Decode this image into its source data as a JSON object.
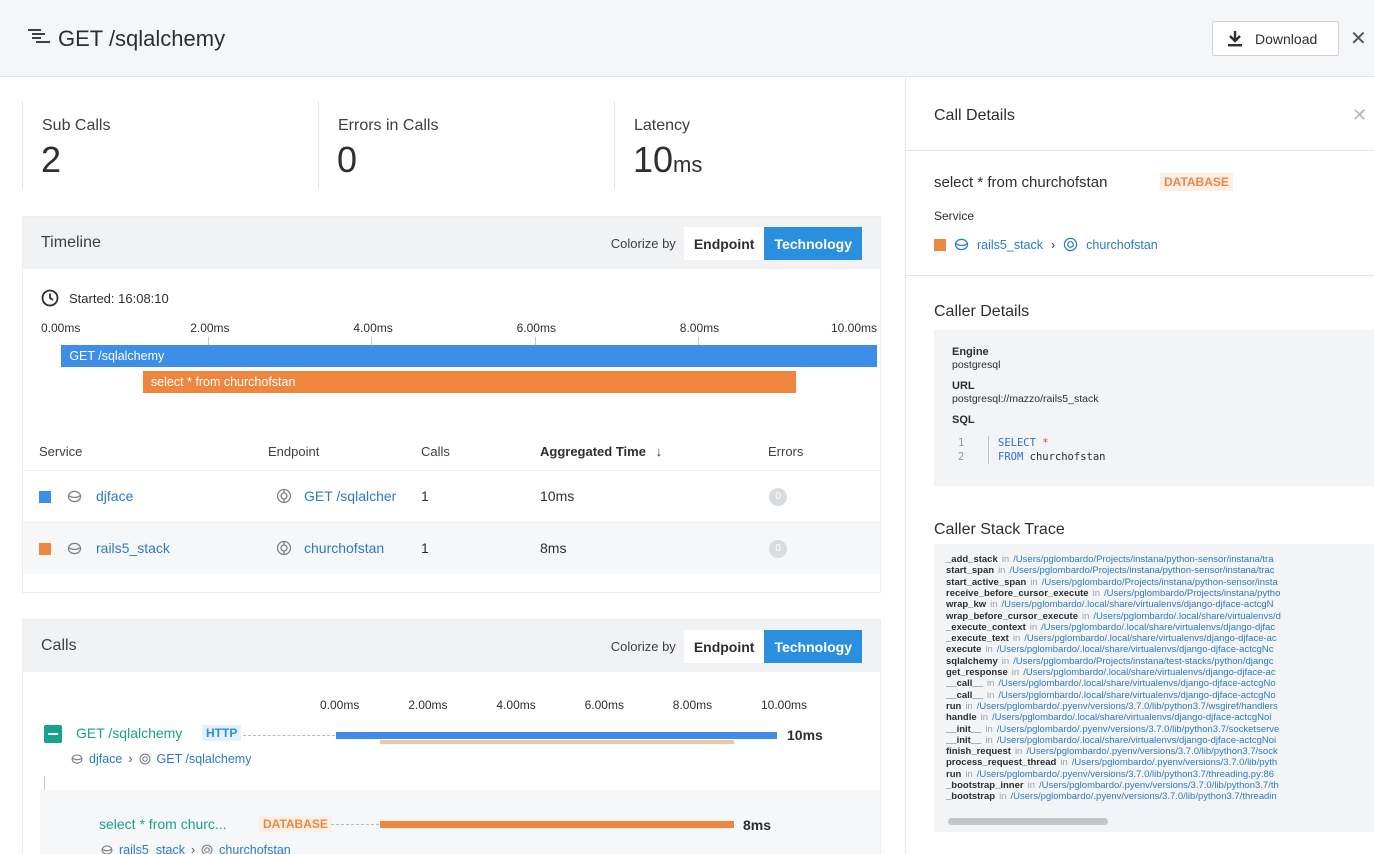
{
  "header": {
    "title": "GET /sqlalchemy",
    "download_label": "Download",
    "close_glyph": "✕"
  },
  "stats": {
    "sub_calls_label": "Sub Calls",
    "sub_calls_value": "2",
    "errors_label": "Errors in Calls",
    "errors_value": "0",
    "latency_label": "Latency",
    "latency_value": "10",
    "latency_unit": "ms"
  },
  "timeline": {
    "title": "Timeline",
    "colorize_label": "Colorize by",
    "endpoint_label": "Endpoint",
    "technology_label": "Technology",
    "started": "Started: 16:08:10",
    "ticks": [
      "0.00ms",
      "2.00ms",
      "4.00ms",
      "6.00ms",
      "8.00ms",
      "10.00ms"
    ],
    "bars": [
      {
        "label": "GET /sqlalchemy",
        "start_ms": 0.2,
        "end_ms": 10.2,
        "color": "#3d8ee8"
      },
      {
        "label": "select * from churchofstan",
        "start_ms": 1.2,
        "end_ms": 9.2,
        "color": "#ef8640"
      }
    ]
  },
  "services_table": {
    "headers": {
      "service": "Service",
      "endpoint": "Endpoint",
      "calls": "Calls",
      "agg_time": "Aggregated Time",
      "sort_arrow": "↓",
      "errors": "Errors"
    },
    "rows": [
      {
        "service": "djface",
        "endpoint": "GET /sqlalcher",
        "calls": "1",
        "time": "10ms",
        "errors": "0",
        "color": "#3d8ee8"
      },
      {
        "service": "rails5_stack",
        "endpoint": "churchofstan",
        "calls": "1",
        "time": "8ms",
        "errors": "0",
        "color": "#ef8640"
      }
    ]
  },
  "calls": {
    "title": "Calls",
    "colorize_label": "Colorize by",
    "endpoint_label": "Endpoint",
    "technology_label": "Technology",
    "ticks": [
      "0.00ms",
      "2.00ms",
      "4.00ms",
      "6.00ms",
      "8.00ms",
      "10.00ms"
    ],
    "items": [
      {
        "name": "GET /sqlalchemy",
        "badge": "HTTP",
        "service": "djface",
        "endpoint": "GET /sqlalchemy",
        "duration": "10ms"
      },
      {
        "name": "select * from churc...",
        "badge": "DATABASE",
        "service": "rails5_stack",
        "endpoint": "churchofstan",
        "duration": "8ms"
      }
    ]
  },
  "details": {
    "title": "Call Details",
    "close_glyph": "✕",
    "call_name": "select * from churchofstan",
    "call_badge": "DATABASE",
    "service_label": "Service",
    "service": "rails5_stack",
    "endpoint": "churchofstan",
    "caller_details_title": "Caller Details",
    "engine_label": "Engine",
    "engine": "postgresql",
    "url_label": "URL",
    "url": "postgresql://mazzo/rails5_stack",
    "sql_label": "SQL",
    "sql_line1_no": "1",
    "sql_line1_kw": "SELECT",
    "sql_line1_rest": "*",
    "sql_line2_no": "2",
    "sql_line2_kw": "FROM",
    "sql_line2_rest": "churchofstan",
    "stack_title": "Caller Stack Trace",
    "stack": [
      {
        "fn": "_add_stack",
        "path": "/Users/pglombardo/Projects/instana/python-sensor/instana/tra"
      },
      {
        "fn": "start_span",
        "path": "/Users/pglombardo/Projects/instana/python-sensor/instana/trac"
      },
      {
        "fn": "start_active_span",
        "path": "/Users/pglombardo/Projects/instana/python-sensor/insta"
      },
      {
        "fn": "receive_before_cursor_execute",
        "path": "/Users/pglombardo/Projects/instana/pytho"
      },
      {
        "fn": "wrap_kw",
        "path": "/Users/pglombardo/.local/share/virtualenvs/django-djface-actcgN"
      },
      {
        "fn": "wrap_before_cursor_execute",
        "path": "/Users/pglombardo/.local/share/virtualenvs/d"
      },
      {
        "fn": "_execute_context",
        "path": "/Users/pglombardo/.local/share/virtualenvs/django-djfac"
      },
      {
        "fn": "_execute_text",
        "path": "/Users/pglombardo/.local/share/virtualenvs/django-djface-ac"
      },
      {
        "fn": "execute",
        "path": "/Users/pglombardo/.local/share/virtualenvs/django-djface-actcgNc"
      },
      {
        "fn": "sqlalchemy",
        "path": "/Users/pglombardo/Projects/instana/test-stacks/python/djangc"
      },
      {
        "fn": "get_response",
        "path": "/Users/pglombardo/.local/share/virtualenvs/django-djface-ac"
      },
      {
        "fn": "__call__",
        "path": "/Users/pglombardo/.local/share/virtualenvs/django-djface-actcgNo"
      },
      {
        "fn": "__call__",
        "path": "/Users/pglombardo/.local/share/virtualenvs/django-djface-actcgNo"
      },
      {
        "fn": "run",
        "path": "/Users/pglombardo/.pyenv/versions/3.7.0/lib/python3.7/wsgiref/handlers"
      },
      {
        "fn": "handle",
        "path": "/Users/pglombardo/.local/share/virtualenvs/django-djface-actcgNoi"
      },
      {
        "fn": "__init__",
        "path": "/Users/pglombardo/.pyenv/versions/3.7.0/lib/python3.7/socketserve"
      },
      {
        "fn": "__init__",
        "path": "/Users/pglombardo/.local/share/virtualenvs/django-djface-actcgNoi"
      },
      {
        "fn": "finish_request",
        "path": "/Users/pglombardo/.pyenv/versions/3.7.0/lib/python3.7/sock"
      },
      {
        "fn": "process_request_thread",
        "path": "/Users/pglombardo/.pyenv/versions/3.7.0/lib/pyth"
      },
      {
        "fn": "run",
        "path": "/Users/pglombardo/.pyenv/versions/3.7.0/lib/python3.7/threading.py:86"
      },
      {
        "fn": "_bootstrap_inner",
        "path": "/Users/pglombardo/.pyenv/versions/3.7.0/lib/python3.7/th"
      },
      {
        "fn": "_bootstrap",
        "path": "/Users/pglombardo/.pyenv/versions/3.7.0/lib/python3.7/threadin"
      }
    ],
    "stack_in_word": "in"
  },
  "colors": {
    "blue": "#3d8ee8",
    "orange": "#ef8640",
    "teal": "#17a38a",
    "link": "#2b7bc4"
  }
}
